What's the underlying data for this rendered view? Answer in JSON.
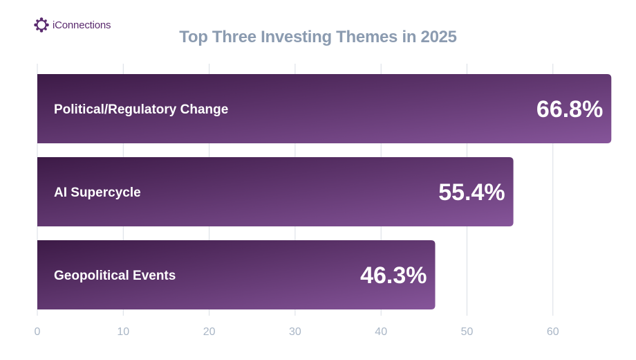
{
  "brand": {
    "name": "iConnections",
    "icon": "iconnections-logo-icon",
    "color": "#5a2a6e"
  },
  "chart_data": {
    "type": "bar",
    "orientation": "horizontal",
    "title": "Top Three Investing Themes in 2025",
    "categories": [
      "Political/Regulatory Change",
      "AI Supercycle",
      "Geopolitical Events"
    ],
    "values": [
      66.8,
      55.4,
      46.3
    ],
    "value_labels": [
      "66.8%",
      "55.4%",
      "46.3%"
    ],
    "xlabel": "",
    "ylabel": "",
    "xlim": [
      0,
      70
    ],
    "x_ticks": [
      0,
      10,
      20,
      30,
      40,
      50,
      60
    ],
    "grid": true,
    "legend": "none",
    "colors": {
      "bar_start": "#3c1a46",
      "bar_end": "#86559a",
      "grid": "#d8dde4",
      "title": "#8b9bb0",
      "ticks": "#a9b6c6"
    }
  }
}
